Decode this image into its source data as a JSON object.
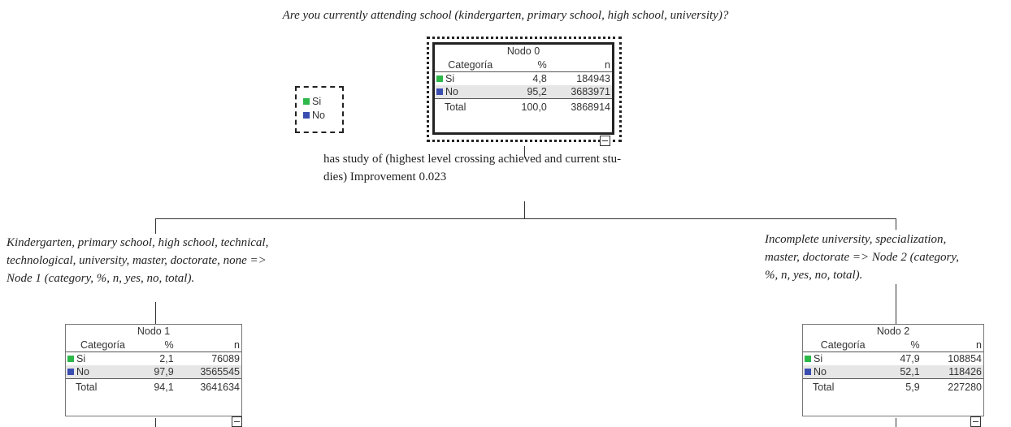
{
  "question": "Are you currently attending school (kindergarten, primary school, high school, university)?",
  "colors": {
    "si": "#2db84a",
    "no": "#3a4db0"
  },
  "legend": {
    "items": [
      {
        "label": "Si"
      },
      {
        "label": "No"
      }
    ]
  },
  "split": {
    "line1": "has study of (highest level crossing achieved and current stu-",
    "line2": "dies)  Improvement 0.023"
  },
  "branches": {
    "left": {
      "line1": "Kindergarten, primary school, high school, technical,",
      "line2": "technological, university, master, doctorate, none =>",
      "line3": "Node 1 (category, %, n, yes, no, total)."
    },
    "right": {
      "line1": "Incomplete university, specialization,",
      "line2": "master, doctorate => Node 2 (category,",
      "line3": "%, n, yes, no, total)."
    }
  },
  "nodes": {
    "n0": {
      "title": "Nodo 0",
      "headers": [
        "Categoría",
        "%",
        "n"
      ],
      "rows": [
        {
          "label": "Si",
          "pct": "4,8",
          "n": "184943"
        },
        {
          "label": "No",
          "pct": "95,2",
          "n": "3683971"
        }
      ],
      "total": {
        "label": "Total",
        "pct": "100,0",
        "n": "3868914"
      }
    },
    "n1": {
      "title": "Nodo 1",
      "headers": [
        "Categoría",
        "%",
        "n"
      ],
      "rows": [
        {
          "label": "Si",
          "pct": "2,1",
          "n": "76089"
        },
        {
          "label": "No",
          "pct": "97,9",
          "n": "3565545"
        }
      ],
      "total": {
        "label": "Total",
        "pct": "94,1",
        "n": "3641634"
      }
    },
    "n2": {
      "title": "Nodo 2",
      "headers": [
        "Categoría",
        "%",
        "n"
      ],
      "rows": [
        {
          "label": "Si",
          "pct": "47,9",
          "n": "108854"
        },
        {
          "label": "No",
          "pct": "52,1",
          "n": "118426"
        }
      ],
      "total": {
        "label": "Total",
        "pct": "5,9",
        "n": "227280"
      }
    }
  }
}
